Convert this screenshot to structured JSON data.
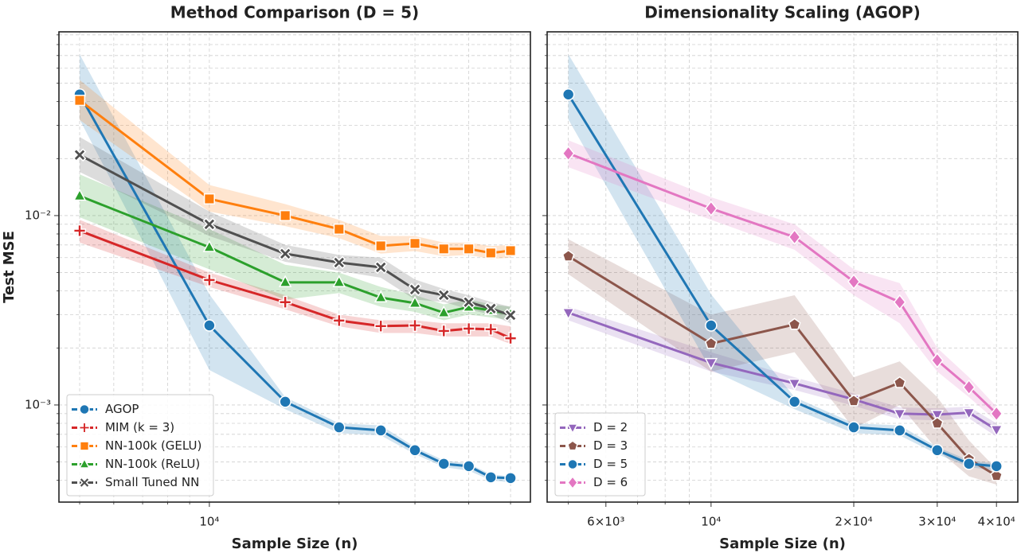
{
  "chart_data": [
    {
      "type": "line",
      "title": "Method Comparison (D = 5)",
      "xlabel": "Sample Size (n)",
      "ylabel": "Test MSE",
      "xscale": "log",
      "yscale": "log",
      "grid": true,
      "legend": "lower left",
      "x": [
        5000,
        10000,
        15000,
        20000,
        25000,
        30000,
        35000,
        40000,
        45000,
        50000
      ],
      "xlim": [
        4476,
        55600
      ],
      "ylim": [
        0.000307,
        0.0934
      ],
      "xticks": [
        {
          "value": 10000,
          "label": "10⁴"
        }
      ],
      "xminorticks": [
        5000,
        6000,
        7000,
        8000,
        9000,
        20000,
        30000,
        40000,
        50000
      ],
      "yticks": [
        {
          "value": 0.001,
          "label": "10⁻³"
        },
        {
          "value": 0.01,
          "label": "10⁻²"
        }
      ],
      "yminorticks": [
        0.0004,
        0.0005,
        0.0006,
        0.0007,
        0.0008,
        0.0009,
        0.002,
        0.003,
        0.004,
        0.005,
        0.006,
        0.007,
        0.008,
        0.009,
        0.02,
        0.03,
        0.04,
        0.05,
        0.06,
        0.07,
        0.08,
        0.09
      ],
      "series": [
        {
          "name": "AGOP",
          "color": "#1f77b4",
          "marker": "circle",
          "values": [
            0.0436,
            0.00263,
            0.00104,
            0.000762,
            0.000734,
            0.000577,
            0.000489,
            0.000475,
            0.000415,
            0.000411
          ],
          "ci_upper": [
            0.0711,
            0.00384,
            0.0011,
            0.0008,
            0.00078,
            0.0006,
            0.00051,
            0.00049,
            0.00043,
            0.00042
          ],
          "ci_lower": [
            0.0322,
            0.00153,
            0.00095,
            0.00071,
            0.00069,
            0.00055,
            0.00047,
            0.00045,
            0.0004,
            0.00039
          ]
        },
        {
          "name": "MIM (k = 3)",
          "color": "#d62728",
          "marker": "plus",
          "values": [
            0.00832,
            0.00457,
            0.00349,
            0.00279,
            0.00261,
            0.00263,
            0.00246,
            0.00253,
            0.00251,
            0.00225
          ],
          "ci_upper": [
            0.0095,
            0.005,
            0.0038,
            0.003,
            0.0028,
            0.0028,
            0.0027,
            0.0027,
            0.0027,
            0.0026
          ],
          "ci_lower": [
            0.0072,
            0.0042,
            0.0032,
            0.0026,
            0.0024,
            0.0024,
            0.0023,
            0.0023,
            0.0023,
            0.0021
          ]
        },
        {
          "name": "NN-100k (GELU)",
          "color": "#ff7f0e",
          "marker": "square",
          "values": [
            0.0406,
            0.01225,
            0.01,
            0.00848,
            0.00692,
            0.00713,
            0.00667,
            0.00667,
            0.00635,
            0.00653
          ],
          "ci_upper": [
            0.052,
            0.0145,
            0.0115,
            0.0095,
            0.0078,
            0.0078,
            0.0072,
            0.0072,
            0.0069,
            0.007
          ],
          "ci_lower": [
            0.032,
            0.0105,
            0.0088,
            0.0076,
            0.0063,
            0.0065,
            0.0061,
            0.0062,
            0.0059,
            0.006
          ]
        },
        {
          "name": "NN-100k (ReLU)",
          "color": "#2ca02c",
          "marker": "triangle-up",
          "values": [
            0.0127,
            0.0068,
            0.00444,
            0.00444,
            0.00369,
            0.00345,
            0.00307,
            0.00329,
            0.00316,
            0.00301
          ],
          "ci_upper": [
            0.0165,
            0.0085,
            0.0055,
            0.005,
            0.0042,
            0.0038,
            0.0034,
            0.0036,
            0.0034,
            0.0033
          ],
          "ci_lower": [
            0.0098,
            0.0052,
            0.0036,
            0.0039,
            0.0033,
            0.0031,
            0.0028,
            0.003,
            0.0029,
            0.0028
          ]
        },
        {
          "name": "Small Tuned NN",
          "color": "#505050",
          "marker": "x",
          "values": [
            0.0209,
            0.009,
            0.00629,
            0.00565,
            0.00533,
            0.00407,
            0.0038,
            0.00349,
            0.00323,
            0.00298
          ],
          "ci_upper": [
            0.026,
            0.0105,
            0.007,
            0.0062,
            0.006,
            0.0046,
            0.0041,
            0.0038,
            0.0035,
            0.0033
          ],
          "ci_lower": [
            0.017,
            0.0078,
            0.0057,
            0.0051,
            0.0047,
            0.0036,
            0.0035,
            0.0032,
            0.003,
            0.0027
          ]
        }
      ]
    },
    {
      "type": "line",
      "title": "Dimensionality Scaling (AGOP)",
      "xlabel": "Sample Size (n)",
      "xscale": "log",
      "yscale": "log",
      "grid": true,
      "legend": "lower left",
      "sharey": true,
      "x": [
        5000,
        10000,
        15000,
        20000,
        25000,
        30000,
        35000,
        40000
      ],
      "xlim": [
        4510,
        44370
      ],
      "ylim": [
        0.000307,
        0.0934
      ],
      "xticks": [
        {
          "value": 6000,
          "label": "6×10³"
        },
        {
          "value": 10000,
          "label": "10⁴"
        },
        {
          "value": 20000,
          "label": "2×10⁴"
        },
        {
          "value": 30000,
          "label": "3×10⁴"
        },
        {
          "value": 40000,
          "label": "4×10⁴"
        }
      ],
      "xminorticks": [
        5000,
        7000,
        8000,
        9000
      ],
      "series": [
        {
          "name": "D = 2",
          "color": "#9467bd",
          "marker": "triangle-down",
          "values": [
            0.00307,
            0.00167,
            0.0013,
            0.00107,
            0.0009,
            0.00089,
            0.00091,
            0.00074
          ],
          "ci_upper": [
            0.0033,
            0.0019,
            0.0014,
            0.00115,
            0.00097,
            0.00096,
            0.00098,
            0.0008
          ],
          "ci_lower": [
            0.0028,
            0.0015,
            0.0012,
            0.00099,
            0.00084,
            0.00083,
            0.00085,
            0.00068
          ]
        },
        {
          "name": "D = 3",
          "color": "#8c564b",
          "marker": "pentagon",
          "values": [
            0.0061,
            0.00211,
            0.00266,
            0.00105,
            0.00131,
            0.0008,
            0.000518,
            0.000423
          ],
          "ci_upper": [
            0.0075,
            0.003,
            0.0038,
            0.0014,
            0.0017,
            0.0011,
            0.00065,
            0.00046
          ],
          "ci_lower": [
            0.0049,
            0.0015,
            0.0019,
            0.00075,
            0.001,
            0.00058,
            0.00042,
            0.00038
          ]
        },
        {
          "name": "D = 5",
          "color": "#1f77b4",
          "marker": "circle",
          "values": [
            0.0436,
            0.00263,
            0.00104,
            0.000762,
            0.000734,
            0.000577,
            0.000489,
            0.000475
          ],
          "ci_upper": [
            0.0711,
            0.00384,
            0.0011,
            0.0008,
            0.00078,
            0.0006,
            0.00051,
            0.00049
          ],
          "ci_lower": [
            0.0322,
            0.00153,
            0.00095,
            0.00071,
            0.00069,
            0.00055,
            0.00047,
            0.00045
          ]
        },
        {
          "name": "D = 6",
          "color": "#e377c2",
          "marker": "diamond",
          "values": [
            0.0213,
            0.0109,
            0.0077,
            0.00448,
            0.00349,
            0.00172,
            0.00124,
            0.0009
          ],
          "ci_upper": [
            0.025,
            0.0125,
            0.009,
            0.0052,
            0.0044,
            0.002,
            0.0014,
            0.00098
          ],
          "ci_lower": [
            0.018,
            0.0095,
            0.0066,
            0.0038,
            0.0027,
            0.0015,
            0.0011,
            0.00082
          ]
        }
      ]
    }
  ]
}
